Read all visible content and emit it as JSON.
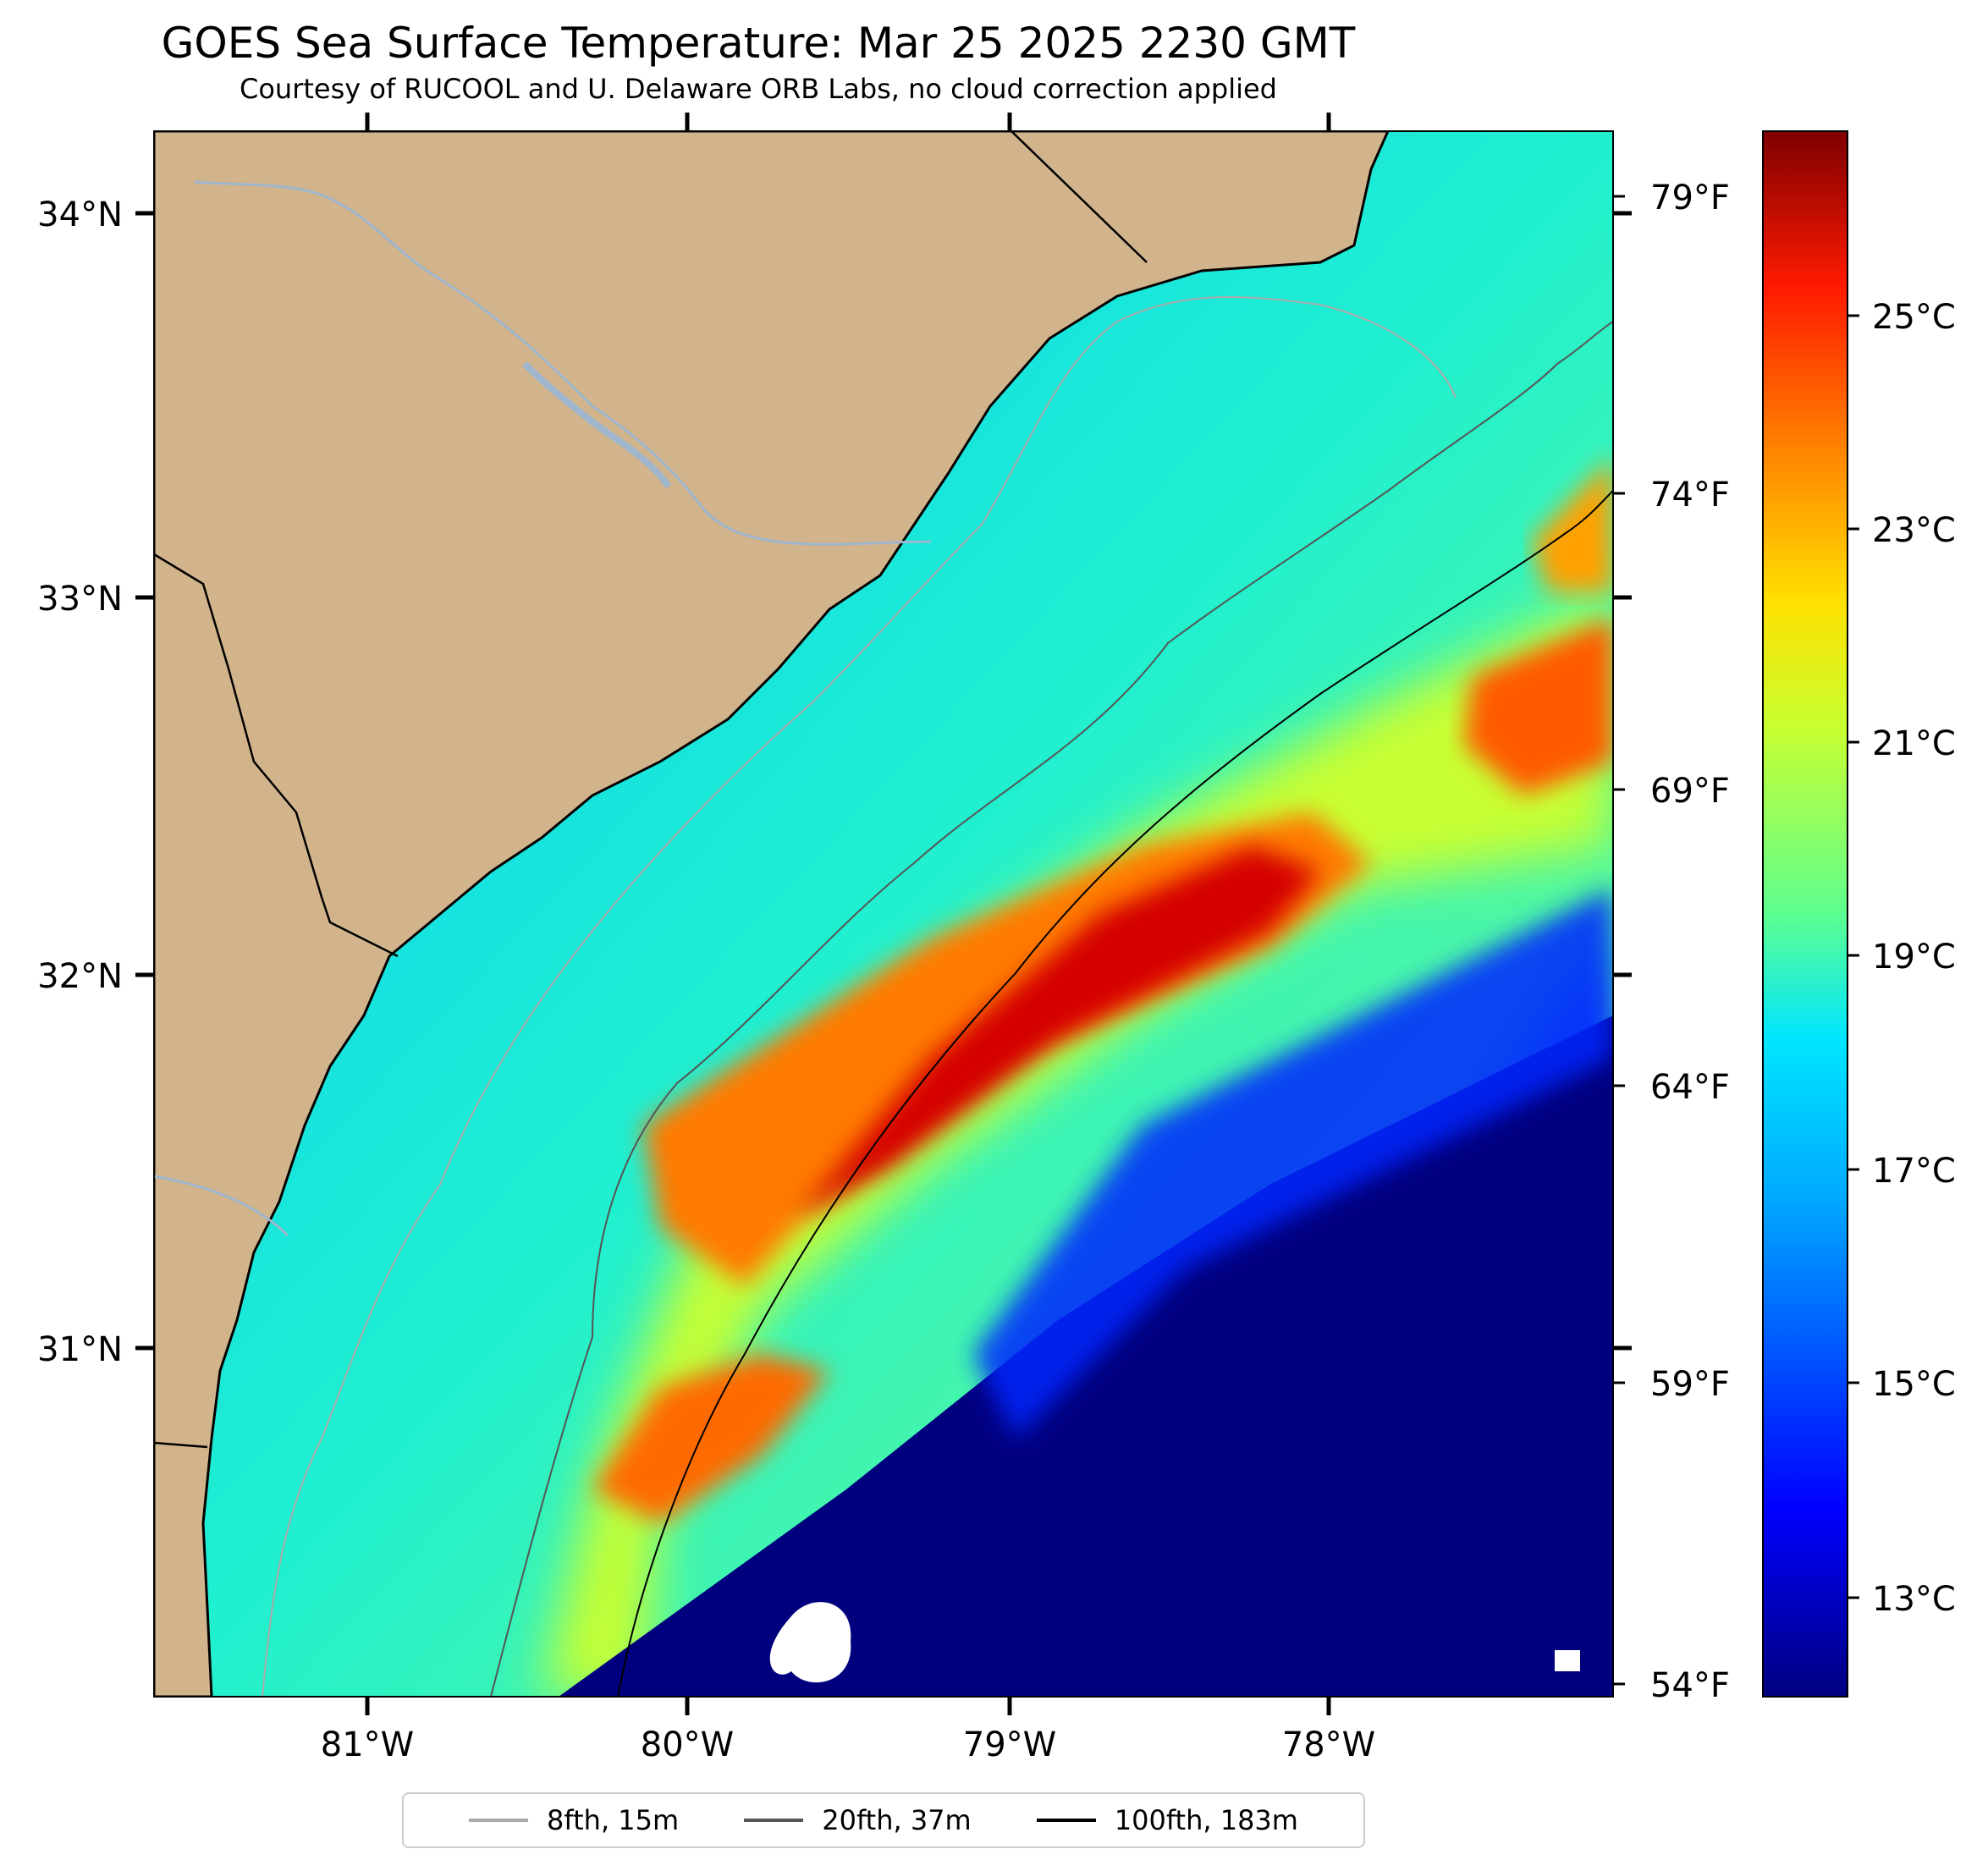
{
  "title": "GOES Sea Surface Temperature: Mar 25 2025 2230 GMT",
  "subtitle": "Courtesy of RUCOOL and U. Delaware ORB Labs, no cloud correction applied",
  "map": {
    "lat_ticks": [
      "34°N",
      "33°N",
      "32°N",
      "31°N"
    ],
    "lon_ticks": [
      "81°W",
      "80°W",
      "79°W",
      "78°W"
    ],
    "fahrenheit_ticks": [
      "79°F",
      "74°F",
      "69°F",
      "64°F",
      "59°F",
      "54°F"
    ],
    "colors": {
      "land": "#d2b48c",
      "coast": "#000000",
      "river": "#9fb6cd",
      "cloud": "#ffffff"
    }
  },
  "colorbar": {
    "ticks": [
      "25°C",
      "23°C",
      "21°C",
      "19°C",
      "17°C",
      "15°C",
      "13°C"
    ],
    "colors": [
      "#00007f",
      "#0000ff",
      "#0080ff",
      "#00e5ff",
      "#4dff80",
      "#c8ff30",
      "#ffd700",
      "#ff7f00",
      "#ff1a00",
      "#7f0000"
    ]
  },
  "legend": [
    {
      "label": "8fth, 15m",
      "color": "#aaaaaa"
    },
    {
      "label": "20fth, 37m",
      "color": "#555555"
    },
    {
      "label": "100fth, 183m",
      "color": "#000000"
    }
  ]
}
